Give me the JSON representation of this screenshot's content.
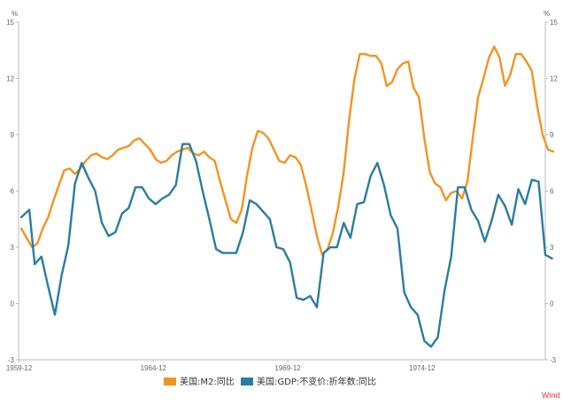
{
  "chart_data": {
    "type": "line",
    "x_ticks": [
      "1959-12",
      "1964-12",
      "1969-12",
      "1974-12"
    ],
    "y_ticks": [
      -3,
      0,
      3,
      6,
      9,
      12,
      15
    ],
    "y_unit_left": "%",
    "y_unit_right": "%",
    "ylim": [
      -3,
      15
    ],
    "x_range": [
      1959.9,
      1979.5
    ],
    "grid": false,
    "legend_position": "bottom",
    "source_label": "Wind",
    "series": [
      {
        "name": "美国:M2:同比",
        "color": "#f39323",
        "points": [
          [
            1960.0,
            4.0
          ],
          [
            1960.2,
            3.5
          ],
          [
            1960.4,
            3.0
          ],
          [
            1960.6,
            3.2
          ],
          [
            1960.8,
            4.0
          ],
          [
            1961.0,
            4.6
          ],
          [
            1961.2,
            5.5
          ],
          [
            1961.4,
            6.3
          ],
          [
            1961.6,
            7.1
          ],
          [
            1961.8,
            7.2
          ],
          [
            1962.0,
            6.9
          ],
          [
            1962.2,
            7.2
          ],
          [
            1962.4,
            7.6
          ],
          [
            1962.6,
            7.9
          ],
          [
            1962.8,
            8.0
          ],
          [
            1963.0,
            7.8
          ],
          [
            1963.2,
            7.7
          ],
          [
            1963.4,
            7.9
          ],
          [
            1963.6,
            8.2
          ],
          [
            1963.8,
            8.3
          ],
          [
            1964.0,
            8.4
          ],
          [
            1964.2,
            8.7
          ],
          [
            1964.4,
            8.8
          ],
          [
            1964.6,
            8.5
          ],
          [
            1964.8,
            8.2
          ],
          [
            1965.0,
            7.7
          ],
          [
            1965.2,
            7.5
          ],
          [
            1965.4,
            7.6
          ],
          [
            1965.6,
            7.9
          ],
          [
            1965.8,
            8.1
          ],
          [
            1966.0,
            8.2
          ],
          [
            1966.2,
            8.3
          ],
          [
            1966.4,
            8.0
          ],
          [
            1966.6,
            7.9
          ],
          [
            1966.8,
            8.1
          ],
          [
            1967.0,
            7.8
          ],
          [
            1967.2,
            7.6
          ],
          [
            1967.4,
            6.5
          ],
          [
            1967.6,
            5.5
          ],
          [
            1967.8,
            4.5
          ],
          [
            1968.0,
            4.3
          ],
          [
            1968.2,
            5.0
          ],
          [
            1968.4,
            6.8
          ],
          [
            1968.6,
            8.3
          ],
          [
            1968.8,
            9.2
          ],
          [
            1969.0,
            9.1
          ],
          [
            1969.2,
            8.8
          ],
          [
            1969.4,
            8.2
          ],
          [
            1969.6,
            7.6
          ],
          [
            1969.8,
            7.5
          ],
          [
            1970.0,
            7.9
          ],
          [
            1970.2,
            7.8
          ],
          [
            1970.4,
            7.4
          ],
          [
            1970.6,
            6.3
          ],
          [
            1970.8,
            5.0
          ],
          [
            1971.0,
            3.6
          ],
          [
            1971.2,
            2.6
          ],
          [
            1971.4,
            2.9
          ],
          [
            1971.6,
            3.8
          ],
          [
            1971.8,
            5.2
          ],
          [
            1972.0,
            7.0
          ],
          [
            1972.2,
            9.8
          ],
          [
            1972.4,
            12.0
          ],
          [
            1972.6,
            13.3
          ],
          [
            1972.8,
            13.3
          ],
          [
            1973.0,
            13.2
          ],
          [
            1973.2,
            13.2
          ],
          [
            1973.4,
            12.8
          ],
          [
            1973.6,
            11.6
          ],
          [
            1973.8,
            11.8
          ],
          [
            1974.0,
            12.5
          ],
          [
            1974.2,
            12.8
          ],
          [
            1974.4,
            12.9
          ],
          [
            1974.6,
            11.5
          ],
          [
            1974.8,
            11.0
          ],
          [
            1975.0,
            8.8
          ],
          [
            1975.2,
            7.0
          ],
          [
            1975.4,
            6.4
          ],
          [
            1975.6,
            6.2
          ],
          [
            1975.8,
            5.5
          ],
          [
            1976.0,
            5.9
          ],
          [
            1976.2,
            6.0
          ],
          [
            1976.4,
            5.6
          ],
          [
            1976.6,
            6.5
          ],
          [
            1976.8,
            8.8
          ],
          [
            1977.0,
            11.0
          ],
          [
            1977.2,
            12.0
          ],
          [
            1977.4,
            13.1
          ],
          [
            1977.6,
            13.7
          ],
          [
            1977.8,
            13.1
          ],
          [
            1978.0,
            11.6
          ],
          [
            1978.2,
            12.2
          ],
          [
            1978.4,
            13.3
          ],
          [
            1978.6,
            13.3
          ],
          [
            1978.8,
            12.9
          ],
          [
            1979.0,
            12.4
          ],
          [
            1979.2,
            10.5
          ],
          [
            1979.4,
            9.0
          ],
          [
            1979.6,
            8.2
          ],
          [
            1979.8,
            8.1
          ]
        ]
      },
      {
        "name": "美国:GDP:不变价:折年数:同比",
        "color": "#2b7ca3",
        "points": [
          [
            1960.0,
            4.6
          ],
          [
            1960.3,
            5.0
          ],
          [
            1960.5,
            2.1
          ],
          [
            1960.75,
            2.5
          ],
          [
            1961.0,
            0.9
          ],
          [
            1961.25,
            -0.6
          ],
          [
            1961.5,
            1.5
          ],
          [
            1961.75,
            3.1
          ],
          [
            1962.0,
            6.4
          ],
          [
            1962.25,
            7.5
          ],
          [
            1962.5,
            6.7
          ],
          [
            1962.75,
            6.0
          ],
          [
            1963.0,
            4.3
          ],
          [
            1963.25,
            3.6
          ],
          [
            1963.5,
            3.8
          ],
          [
            1963.75,
            4.8
          ],
          [
            1964.0,
            5.1
          ],
          [
            1964.25,
            6.2
          ],
          [
            1964.5,
            6.2
          ],
          [
            1964.75,
            5.6
          ],
          [
            1965.0,
            5.3
          ],
          [
            1965.25,
            5.6
          ],
          [
            1965.5,
            5.8
          ],
          [
            1965.75,
            6.3
          ],
          [
            1966.0,
            8.5
          ],
          [
            1966.25,
            8.5
          ],
          [
            1966.5,
            7.6
          ],
          [
            1966.75,
            6.0
          ],
          [
            1967.0,
            4.5
          ],
          [
            1967.25,
            2.9
          ],
          [
            1967.5,
            2.7
          ],
          [
            1967.75,
            2.7
          ],
          [
            1968.0,
            2.7
          ],
          [
            1968.25,
            3.8
          ],
          [
            1968.5,
            5.5
          ],
          [
            1968.75,
            5.3
          ],
          [
            1969.0,
            4.9
          ],
          [
            1969.25,
            4.5
          ],
          [
            1969.5,
            3.0
          ],
          [
            1969.75,
            2.9
          ],
          [
            1970.0,
            2.2
          ],
          [
            1970.25,
            0.3
          ],
          [
            1970.5,
            0.2
          ],
          [
            1970.75,
            0.4
          ],
          [
            1971.0,
            -0.2
          ],
          [
            1971.25,
            2.7
          ],
          [
            1971.5,
            3.0
          ],
          [
            1971.75,
            3.0
          ],
          [
            1972.0,
            4.3
          ],
          [
            1972.25,
            3.5
          ],
          [
            1972.5,
            5.3
          ],
          [
            1972.75,
            5.4
          ],
          [
            1973.0,
            6.8
          ],
          [
            1973.25,
            7.5
          ],
          [
            1973.5,
            6.3
          ],
          [
            1973.75,
            4.7
          ],
          [
            1974.0,
            4.0
          ],
          [
            1974.25,
            0.6
          ],
          [
            1974.5,
            -0.2
          ],
          [
            1974.75,
            -0.6
          ],
          [
            1975.0,
            -2.0
          ],
          [
            1975.25,
            -2.3
          ],
          [
            1975.5,
            -1.8
          ],
          [
            1975.75,
            0.7
          ],
          [
            1976.0,
            2.5
          ],
          [
            1976.25,
            6.2
          ],
          [
            1976.5,
            6.2
          ],
          [
            1976.75,
            5.0
          ],
          [
            1977.0,
            4.4
          ],
          [
            1977.25,
            3.3
          ],
          [
            1977.5,
            4.4
          ],
          [
            1977.75,
            5.8
          ],
          [
            1978.0,
            5.2
          ],
          [
            1978.25,
            4.2
          ],
          [
            1978.5,
            6.1
          ],
          [
            1978.75,
            5.3
          ],
          [
            1979.0,
            6.6
          ],
          [
            1979.25,
            6.5
          ],
          [
            1979.5,
            2.6
          ],
          [
            1979.75,
            2.4
          ]
        ]
      }
    ]
  }
}
